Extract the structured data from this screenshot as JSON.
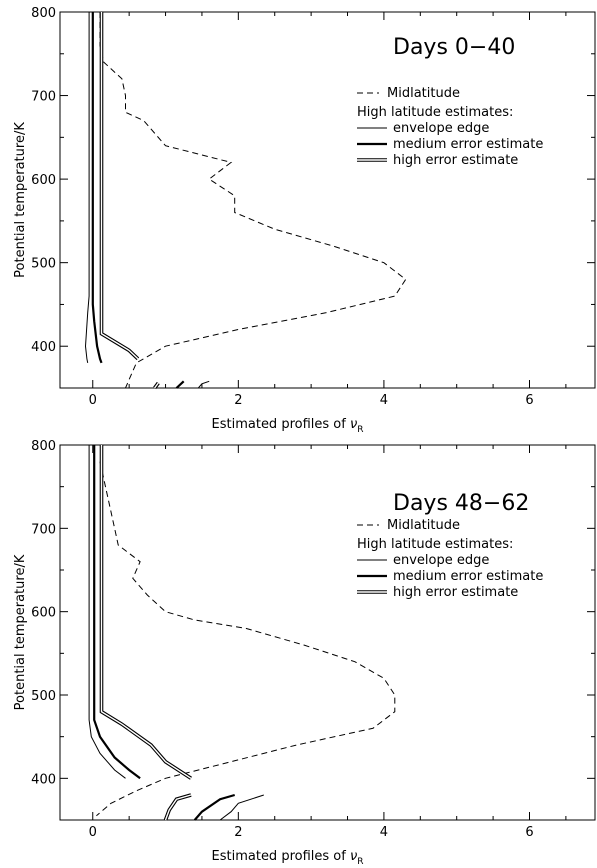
{
  "chart_data": [
    {
      "type": "line",
      "title": "Days 0−40",
      "xlabel": "Estimated profiles of ",
      "xlabel_symbol": "ν",
      "xlabel_subscript": "R",
      "ylabel": "Potential temperature/K",
      "xlim": [
        -0.45,
        6.9
      ],
      "ylim": [
        350,
        800
      ],
      "xticks": [
        0,
        2,
        4,
        6
      ],
      "yticks": [
        400,
        500,
        600,
        700,
        800
      ],
      "grid": false,
      "legend": {
        "placement": "top-right",
        "group_heading": "High latitude estimates:",
        "entries": [
          {
            "label": "Midlatitude",
            "style": "dashed"
          },
          {
            "label": "envelope edge",
            "style": "thin"
          },
          {
            "label": "medium error estimate",
            "style": "thick"
          },
          {
            "label": "high error estimate",
            "style": "double"
          }
        ]
      },
      "series": [
        {
          "name": "Midlatitude",
          "style": "dashed",
          "points": [
            [
              0.1,
              800
            ],
            [
              0.1,
              760
            ],
            [
              0.15,
              740
            ],
            [
              0.4,
              720
            ],
            [
              0.45,
              700
            ],
            [
              0.45,
              680
            ],
            [
              0.7,
              670
            ],
            [
              1.0,
              640
            ],
            [
              1.9,
              620
            ],
            [
              1.6,
              600
            ],
            [
              1.95,
              580
            ],
            [
              1.95,
              560
            ],
            [
              2.5,
              540
            ],
            [
              3.3,
              520
            ],
            [
              4.0,
              500
            ],
            [
              4.3,
              480
            ],
            [
              4.15,
              460
            ],
            [
              3.2,
              440
            ],
            [
              2.0,
              420
            ],
            [
              1.0,
              400
            ],
            [
              0.6,
              380
            ],
            [
              0.5,
              360
            ],
            [
              0.45,
              350
            ]
          ]
        },
        {
          "name": "envelope edge",
          "style": "thin",
          "points": [
            [
              -0.05,
              800
            ],
            [
              -0.05,
              460
            ],
            [
              -0.07,
              440
            ],
            [
              -0.1,
              400
            ],
            [
              -0.08,
              385
            ],
            [
              -0.07,
              380
            ]
          ]
        },
        {
          "name": "medium error estimate",
          "style": "thick",
          "points": [
            [
              0.0,
              800
            ],
            [
              0.0,
              450
            ],
            [
              0.02,
              430
            ],
            [
              0.06,
              400
            ],
            [
              0.1,
              385
            ],
            [
              0.12,
              380
            ]
          ]
        },
        {
          "name": "high error estimate",
          "style": "double",
          "points": [
            [
              0.12,
              800
            ],
            [
              0.12,
              415
            ],
            [
              0.5,
              395
            ],
            [
              0.62,
              385
            ]
          ]
        },
        {
          "name": "envelope edge (lower)",
          "style": "thin",
          "points": [
            [
              1.45,
              350
            ],
            [
              1.5,
              355
            ],
            [
              1.6,
              358
            ]
          ]
        },
        {
          "name": "medium error estimate (lower)",
          "style": "thick",
          "points": [
            [
              1.15,
              350
            ],
            [
              1.25,
              358
            ]
          ]
        },
        {
          "name": "high error estimate (lower)",
          "style": "double",
          "points": [
            [
              0.85,
              350
            ],
            [
              0.9,
              356
            ]
          ]
        }
      ]
    },
    {
      "type": "line",
      "title": "Days 48−62",
      "xlabel": "Estimated profiles of ",
      "xlabel_symbol": "ν",
      "xlabel_subscript": "R",
      "ylabel": "Potential temperature/K",
      "xlim": [
        -0.45,
        6.9
      ],
      "ylim": [
        350,
        800
      ],
      "xticks": [
        0,
        2,
        4,
        6
      ],
      "yticks": [
        400,
        500,
        600,
        700,
        800
      ],
      "grid": false,
      "legend": {
        "placement": "top-right",
        "group_heading": "High latitude estimates:",
        "entries": [
          {
            "label": "Midlatitude",
            "style": "dashed"
          },
          {
            "label": "envelope edge",
            "style": "thin"
          },
          {
            "label": "medium error estimate",
            "style": "thick"
          },
          {
            "label": "high error estimate",
            "style": "double"
          }
        ]
      },
      "series": [
        {
          "name": "Midlatitude",
          "style": "dashed",
          "points": [
            [
              0.1,
              780
            ],
            [
              0.2,
              740
            ],
            [
              0.3,
              700
            ],
            [
              0.35,
              680
            ],
            [
              0.65,
              660
            ],
            [
              0.55,
              640
            ],
            [
              0.75,
              620
            ],
            [
              1.0,
              600
            ],
            [
              1.4,
              590
            ],
            [
              2.1,
              580
            ],
            [
              2.9,
              560
            ],
            [
              3.6,
              540
            ],
            [
              4.0,
              520
            ],
            [
              4.15,
              500
            ],
            [
              4.15,
              480
            ],
            [
              3.85,
              460
            ],
            [
              2.8,
              440
            ],
            [
              1.9,
              420
            ],
            [
              1.0,
              400
            ],
            [
              0.6,
              385
            ],
            [
              0.25,
              370
            ],
            [
              0.05,
              355
            ]
          ]
        },
        {
          "name": "envelope edge",
          "style": "thin",
          "points": [
            [
              -0.05,
              800
            ],
            [
              -0.05,
              470
            ],
            [
              -0.02,
              450
            ],
            [
              0.1,
              430
            ],
            [
              0.3,
              410
            ],
            [
              0.45,
              400
            ]
          ]
        },
        {
          "name": "medium error estimate",
          "style": "thick",
          "points": [
            [
              0.02,
              800
            ],
            [
              0.02,
              470
            ],
            [
              0.1,
              450
            ],
            [
              0.3,
              425
            ],
            [
              0.5,
              410
            ],
            [
              0.65,
              400
            ]
          ]
        },
        {
          "name": "high error estimate",
          "style": "double",
          "points": [
            [
              0.12,
              800
            ],
            [
              0.12,
              480
            ],
            [
              0.4,
              465
            ],
            [
              0.8,
              440
            ],
            [
              1.0,
              420
            ],
            [
              1.35,
              400
            ]
          ]
        },
        {
          "name": "envelope edge (lower)",
          "style": "thin",
          "points": [
            [
              1.75,
              350
            ],
            [
              1.9,
              360
            ],
            [
              2.0,
              370
            ],
            [
              2.35,
              380
            ]
          ]
        },
        {
          "name": "medium error estimate (lower)",
          "style": "thick",
          "points": [
            [
              1.4,
              350
            ],
            [
              1.5,
              360
            ],
            [
              1.75,
              375
            ],
            [
              1.95,
              380
            ]
          ]
        },
        {
          "name": "high error estimate (lower)",
          "style": "double",
          "points": [
            [
              1.0,
              350
            ],
            [
              1.05,
              362
            ],
            [
              1.15,
              375
            ],
            [
              1.35,
              380
            ]
          ]
        }
      ]
    }
  ]
}
